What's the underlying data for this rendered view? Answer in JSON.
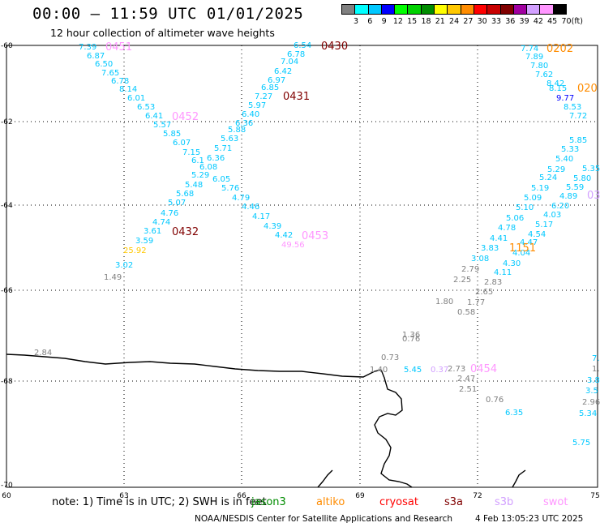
{
  "title": "00:00 – 11:59 UTC 01/01/2025",
  "subtitle": "12 hour collection of altimeter wave heights",
  "legend": {
    "swatches": [
      "#808080",
      "#00ffff",
      "#00c8ff",
      "#0000ff",
      "#00ff00",
      "#00d200",
      "#008c00",
      "#ffff00",
      "#ffc800",
      "#ff8c00",
      "#ff0000",
      "#c80000",
      "#800000",
      "#a000a0",
      "#d2a0ff",
      "#ff96ff",
      "#000000"
    ],
    "labels": [
      "3",
      "6",
      "9",
      "12",
      "15",
      "18",
      "21",
      "24",
      "27",
      "30",
      "33",
      "36",
      "39",
      "42",
      "45",
      "70",
      "(ft)"
    ]
  },
  "axes": {
    "y_labels": [
      "-60",
      "-62",
      "-64",
      "-66",
      "-68",
      "-70"
    ],
    "x_labels": [
      "60",
      "63",
      "66",
      "69",
      "72",
      "75"
    ]
  },
  "pass_labels": [
    {
      "text": "0451",
      "color": "#ff96ff"
    },
    {
      "text": "0430",
      "color": "#800000"
    },
    {
      "text": "0431",
      "color": "#800000"
    },
    {
      "text": "0452",
      "color": "#ff96ff"
    },
    {
      "text": "0432",
      "color": "#800000"
    },
    {
      "text": "0453",
      "color": "#ff96ff"
    },
    {
      "text": "0202",
      "color": "#ff8c00"
    },
    {
      "text": "020",
      "color": "#ff8c00"
    },
    {
      "text": "03",
      "color": "#d2a0ff"
    },
    {
      "text": "1151",
      "color": "#ff8c00"
    },
    {
      "text": "0454",
      "color": "#ff96ff"
    }
  ],
  "readings": [
    {
      "v": "7.39",
      "c": "#00c8ff"
    },
    {
      "v": "6.87",
      "c": "#00c8ff"
    },
    {
      "v": "6.50",
      "c": "#00c8ff"
    },
    {
      "v": "7.65",
      "c": "#00c8ff"
    },
    {
      "v": "6.78",
      "c": "#00c8ff"
    },
    {
      "v": "8.14",
      "c": "#00c8ff"
    },
    {
      "v": "6.01",
      "c": "#00c8ff"
    },
    {
      "v": "6.53",
      "c": "#00c8ff"
    },
    {
      "v": "6.41",
      "c": "#00c8ff"
    },
    {
      "v": "5.57",
      "c": "#00c8ff"
    },
    {
      "v": "5.85",
      "c": "#00c8ff"
    },
    {
      "v": "6.07",
      "c": "#00c8ff"
    },
    {
      "v": "7.15",
      "c": "#00c8ff"
    },
    {
      "v": "6.1",
      "c": "#00c8ff"
    },
    {
      "v": "6.36",
      "c": "#00c8ff"
    },
    {
      "v": "6.08",
      "c": "#00c8ff"
    },
    {
      "v": "5.29",
      "c": "#00c8ff"
    },
    {
      "v": "6.05",
      "c": "#00c8ff"
    },
    {
      "v": "5.48",
      "c": "#00c8ff"
    },
    {
      "v": "5.76",
      "c": "#00c8ff"
    },
    {
      "v": "5.68",
      "c": "#00c8ff"
    },
    {
      "v": "5.07",
      "c": "#00c8ff"
    },
    {
      "v": "4.79",
      "c": "#00c8ff"
    },
    {
      "v": "4.76",
      "c": "#00c8ff"
    },
    {
      "v": "4.46",
      "c": "#00c8ff"
    },
    {
      "v": "4.74",
      "c": "#00c8ff"
    },
    {
      "v": "4.17",
      "c": "#00c8ff"
    },
    {
      "v": "3.61",
      "c": "#00c8ff"
    },
    {
      "v": "4.39",
      "c": "#00c8ff"
    },
    {
      "v": "3.59",
      "c": "#00c8ff"
    },
    {
      "v": "4.42",
      "c": "#00c8ff"
    },
    {
      "v": "49.56",
      "c": "#ff96ff"
    },
    {
      "v": "25.92",
      "c": "#ffc800"
    },
    {
      "v": "3.02",
      "c": "#00c8ff"
    },
    {
      "v": "1.49",
      "c": "#808080"
    },
    {
      "v": "6.54",
      "c": "#00c8ff"
    },
    {
      "v": "6.78",
      "c": "#00c8ff"
    },
    {
      "v": "7.04",
      "c": "#00c8ff"
    },
    {
      "v": "6.42",
      "c": "#00c8ff"
    },
    {
      "v": "6.97",
      "c": "#00c8ff"
    },
    {
      "v": "6.85",
      "c": "#00c8ff"
    },
    {
      "v": "7.27",
      "c": "#00c8ff"
    },
    {
      "v": "5.97",
      "c": "#00c8ff"
    },
    {
      "v": "6.40",
      "c": "#00c8ff"
    },
    {
      "v": "6.36",
      "c": "#00c8ff"
    },
    {
      "v": "5.88",
      "c": "#00c8ff"
    },
    {
      "v": "5.63",
      "c": "#00c8ff"
    },
    {
      "v": "5.71",
      "c": "#00c8ff"
    },
    {
      "v": "7.74",
      "c": "#00c8ff"
    },
    {
      "v": "7.89",
      "c": "#00c8ff"
    },
    {
      "v": "7.80",
      "c": "#00c8ff"
    },
    {
      "v": "7.62",
      "c": "#00c8ff"
    },
    {
      "v": "8.42",
      "c": "#00c8ff"
    },
    {
      "v": "8.15",
      "c": "#00c8ff"
    },
    {
      "v": "9.77",
      "c": "#0000ff"
    },
    {
      "v": "8.53",
      "c": "#00c8ff"
    },
    {
      "v": "7.72",
      "c": "#00c8ff"
    },
    {
      "v": "5.85",
      "c": "#00c8ff"
    },
    {
      "v": "5.33",
      "c": "#00c8ff"
    },
    {
      "v": "5.40",
      "c": "#00c8ff"
    },
    {
      "v": "5.29",
      "c": "#00c8ff"
    },
    {
      "v": "5.35",
      "c": "#00c8ff"
    },
    {
      "v": "5.24",
      "c": "#00c8ff"
    },
    {
      "v": "5.80",
      "c": "#00c8ff"
    },
    {
      "v": "5.19",
      "c": "#00c8ff"
    },
    {
      "v": "5.59",
      "c": "#00c8ff"
    },
    {
      "v": "5.09",
      "c": "#00c8ff"
    },
    {
      "v": "4.89",
      "c": "#00c8ff"
    },
    {
      "v": "5.10",
      "c": "#00c8ff"
    },
    {
      "v": "6.20",
      "c": "#00c8ff"
    },
    {
      "v": "5.06",
      "c": "#00c8ff"
    },
    {
      "v": "4.03",
      "c": "#00c8ff"
    },
    {
      "v": "4.78",
      "c": "#00c8ff"
    },
    {
      "v": "5.17",
      "c": "#00c8ff"
    },
    {
      "v": "4.41",
      "c": "#00c8ff"
    },
    {
      "v": "4.54",
      "c": "#00c8ff"
    },
    {
      "v": "4.47",
      "c": "#00c8ff"
    },
    {
      "v": "3.83",
      "c": "#00c8ff"
    },
    {
      "v": "4.04",
      "c": "#00c8ff"
    },
    {
      "v": "3.08",
      "c": "#00c8ff"
    },
    {
      "v": "4.30",
      "c": "#00c8ff"
    },
    {
      "v": "2.79",
      "c": "#808080"
    },
    {
      "v": "4.11",
      "c": "#00c8ff"
    },
    {
      "v": "2.25",
      "c": "#808080"
    },
    {
      "v": "2.83",
      "c": "#808080"
    },
    {
      "v": "2.65",
      "c": "#808080"
    },
    {
      "v": "1.80",
      "c": "#808080"
    },
    {
      "v": "1.77",
      "c": "#808080"
    },
    {
      "v": "0.58",
      "c": "#808080"
    },
    {
      "v": "1.36",
      "c": "#808080"
    },
    {
      "v": "0.76",
      "c": "#808080"
    },
    {
      "v": "2.84",
      "c": "#808080"
    },
    {
      "v": "0.73",
      "c": "#808080"
    },
    {
      "v": "1.40",
      "c": "#808080"
    },
    {
      "v": "5.45",
      "c": "#00c8ff"
    },
    {
      "v": "0.37",
      "c": "#d2a0ff"
    },
    {
      "v": "2.73",
      "c": "#808080"
    },
    {
      "v": "2.47",
      "c": "#808080"
    },
    {
      "v": "2.51",
      "c": "#808080"
    },
    {
      "v": "0.76",
      "c": "#808080"
    },
    {
      "v": "6.35",
      "c": "#00c8ff"
    },
    {
      "v": "5.75",
      "c": "#00c8ff"
    },
    {
      "v": "7.",
      "c": "#00c8ff"
    },
    {
      "v": "1.",
      "c": "#808080"
    },
    {
      "v": "3.8",
      "c": "#00c8ff"
    },
    {
      "v": "3.5",
      "c": "#00c8ff"
    },
    {
      "v": "2.96",
      "c": "#808080"
    },
    {
      "v": "5.34",
      "c": "#00c8ff"
    }
  ],
  "footer": {
    "note": "note:  1) Time is in UTC;  2) SWH is in feet",
    "satellites": [
      {
        "name": "jason3",
        "color": "#008c00"
      },
      {
        "name": "altiko",
        "color": "#ff8c00"
      },
      {
        "name": "cryosat",
        "color": "#ff0000"
      },
      {
        "name": "s3a",
        "color": "#800000"
      },
      {
        "name": "s3b",
        "color": "#d2a0ff"
      },
      {
        "name": "swot",
        "color": "#ff96ff"
      }
    ],
    "credit": "NOAA/NESDIS Center for Satellite Applications and Research",
    "stamp": "4 Feb 13:05:23 UTC 2025"
  }
}
